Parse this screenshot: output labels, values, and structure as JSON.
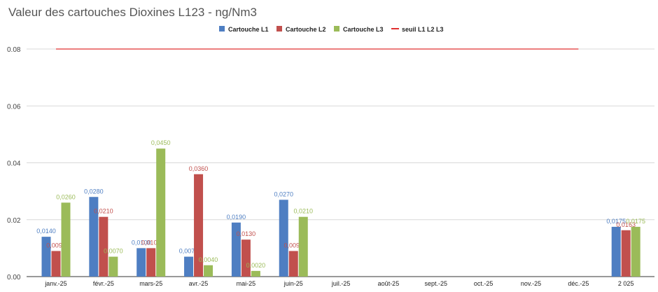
{
  "chart_data": {
    "type": "bar",
    "title": "Valeur des cartouches Dioxines L123 - ng/Nm3",
    "xlabel": "",
    "ylabel": "",
    "ylim": [
      0,
      0.08
    ],
    "yticks": [
      "0.00",
      "0.02",
      "0.04",
      "0.06",
      "0.08"
    ],
    "ytick_values": [
      0,
      0.02,
      0.04,
      0.06,
      0.08
    ],
    "categories": [
      "janv.-25",
      "févr.-25",
      "mars-25",
      "avr.-25",
      "mai-25",
      "juin-25",
      "juil.-25",
      "août-25",
      "sept.-25",
      "oct.-25",
      "nov.-25",
      "déc.-25",
      "2 025"
    ],
    "series": [
      {
        "name": "Cartouche L1",
        "color": "#4e7ec2",
        "values": [
          0.014,
          0.028,
          0.01,
          0.007,
          0.019,
          0.027,
          null,
          null,
          null,
          null,
          null,
          null,
          0.0175
        ],
        "labels": [
          "0,0140",
          "0,0280",
          "0,0100",
          "0,0070",
          "0,0190",
          "0,0270",
          "",
          "",
          "",
          "",
          "",
          "",
          "0,0175"
        ]
      },
      {
        "name": "Cartouche L2",
        "color": "#c1504d",
        "values": [
          0.009,
          0.021,
          0.01,
          0.036,
          0.013,
          0.009,
          null,
          null,
          null,
          null,
          null,
          null,
          0.0163
        ],
        "labels": [
          "0,0090",
          "0,0210",
          "0,0100",
          "0,0360",
          "0,0130",
          "0,0090",
          "",
          "",
          "",
          "",
          "",
          "",
          "0,0163"
        ]
      },
      {
        "name": "Cartouche L3",
        "color": "#9bbb59",
        "values": [
          0.026,
          0.007,
          0.045,
          0.004,
          0.002,
          0.021,
          null,
          null,
          null,
          null,
          null,
          null,
          0.0175
        ],
        "labels": [
          "0,0260",
          "0,0070",
          "0,0450",
          "0,0040",
          "0,0020",
          "0,0210",
          "",
          "",
          "",
          "",
          "",
          "",
          "0,0175"
        ]
      }
    ],
    "threshold": {
      "name": "seuil L1 L2 L3",
      "value": 0.08,
      "color": "#e03030",
      "from_category": 0,
      "to_category": 11
    },
    "legend_position": "top-center",
    "grid": true
  }
}
